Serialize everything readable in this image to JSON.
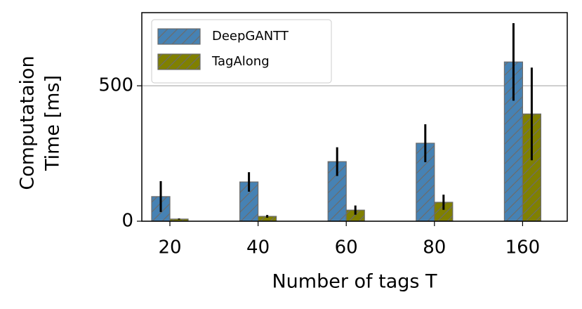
{
  "chart_data": {
    "type": "bar",
    "xlabel": "Number of tags T",
    "ylabel": [
      "Computataion",
      "Time [ms]"
    ],
    "categories": [
      "20",
      "40",
      "60",
      "80",
      "160"
    ],
    "series": [
      {
        "name": "DeepGANTT",
        "color": "#4682b4",
        "values": [
          91,
          145,
          220,
          288,
          588
        ],
        "errors": [
          57,
          36,
          53,
          70,
          143
        ]
      },
      {
        "name": "TagAlong",
        "color": "#808000",
        "values": [
          8,
          18,
          41,
          70,
          396
        ],
        "errors": [
          2,
          5,
          17,
          28,
          171
        ]
      }
    ],
    "ylim": [
      0,
      770
    ],
    "yticks": [
      0,
      500
    ],
    "grid": true,
    "legend": "upper left"
  }
}
